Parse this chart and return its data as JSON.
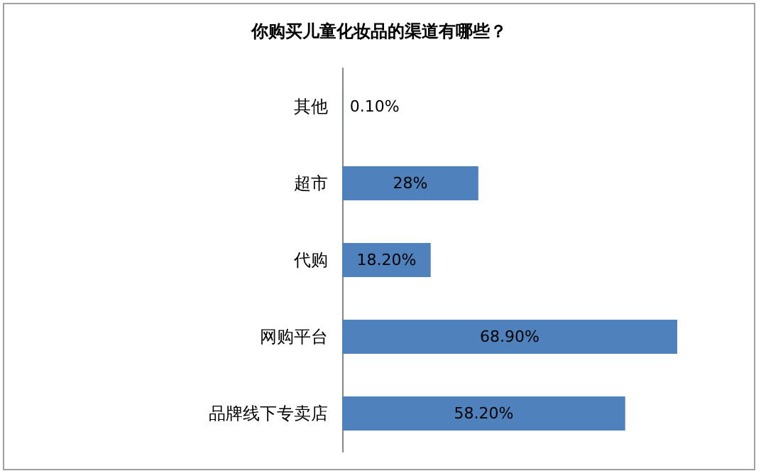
{
  "chart_data": {
    "type": "bar",
    "orientation": "horizontal",
    "title": "你购买儿童化妆品的渠道有哪些？",
    "categories": [
      "其他",
      "超市",
      "代购",
      "网购平台",
      "品牌线下专卖店"
    ],
    "values": [
      0.1,
      28,
      18.2,
      68.9,
      58.2
    ],
    "value_labels": [
      "0.10%",
      "28%",
      "18.20%",
      "68.90%",
      "58.20%"
    ],
    "color": "#4f81bd"
  }
}
